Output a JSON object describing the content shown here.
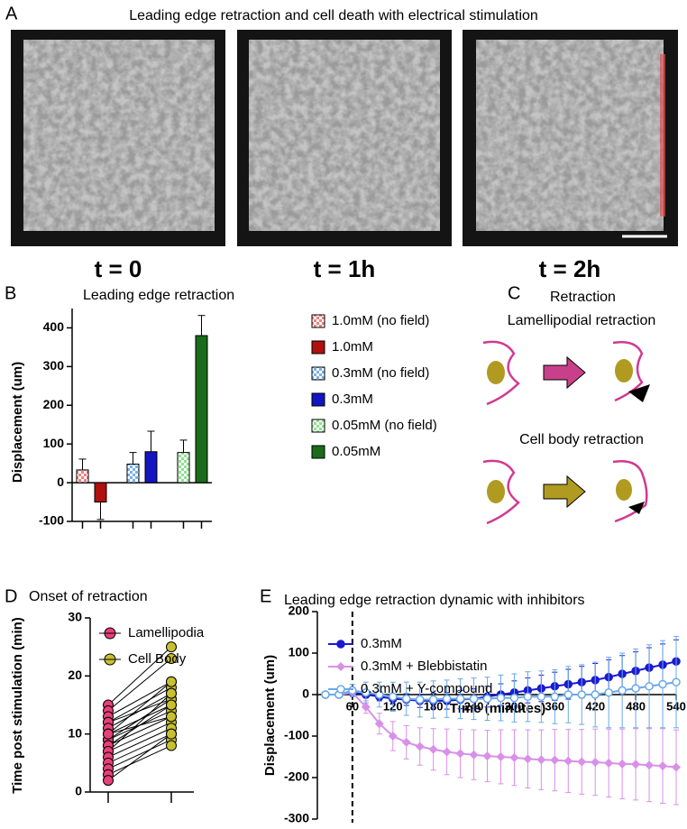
{
  "panel_a": {
    "letter": "A",
    "title": "Leading edge retraction and cell death with electrical stimulation",
    "labels": [
      "t = 0",
      "t = 1h",
      "t = 2h"
    ]
  },
  "panel_c": {
    "letter": "C",
    "title": "Retraction",
    "items": [
      {
        "label": "Lamellipodial retraction",
        "color": "#c8408a"
      },
      {
        "label": "Cell body retraction",
        "color": "#b09a20"
      }
    ]
  },
  "chart_data": [
    {
      "type": "bar",
      "letter": "B",
      "title": "Leading edge retraction",
      "ylabel": "Displacement (um)",
      "ylim": [
        -100,
        450
      ],
      "yticks": [
        -100,
        0,
        100,
        200,
        300,
        400
      ],
      "series": [
        {
          "name": "1.0mM (no field)",
          "color": "#f08080",
          "pattern": "checker",
          "values": [
            33
          ],
          "errors": [
            28
          ]
        },
        {
          "name": "1.0mM",
          "color": "#b01010",
          "values": [
            -50
          ],
          "errors": [
            45
          ]
        },
        {
          "name": "0.3mM (no field)",
          "color": "#7ab0e8",
          "pattern": "checker",
          "values": [
            48
          ],
          "errors": [
            30
          ]
        },
        {
          "name": "0.3mM",
          "color": "#1414c0",
          "values": [
            80
          ],
          "errors": [
            53
          ]
        },
        {
          "name": "0.05mM (no field)",
          "color": "#90e090",
          "pattern": "checker",
          "values": [
            78
          ],
          "errors": [
            32
          ]
        },
        {
          "name": "0.05mM",
          "color": "#1a6b1a",
          "values": [
            380
          ],
          "errors": [
            52
          ]
        }
      ]
    },
    {
      "type": "paired",
      "letter": "D",
      "title": "Onset of retraction",
      "ylabel": "Time post stimulation (min)",
      "ylim": [
        0,
        30
      ],
      "yticks": [
        0,
        10,
        20,
        30
      ],
      "series": [
        {
          "name": "Lamellipodia",
          "color": "#e8407a",
          "values": [
            15,
            14,
            13,
            12,
            12,
            11,
            10,
            10,
            9,
            9,
            8,
            8,
            7,
            7,
            6,
            5,
            4,
            3,
            2,
            10
          ]
        },
        {
          "name": "Cell Body",
          "color": "#c8c030",
          "values": [
            25,
            23,
            19,
            18,
            16,
            17,
            15,
            19,
            14,
            16,
            13,
            15,
            12,
            17,
            11,
            10,
            9,
            8,
            10,
            13
          ]
        }
      ]
    },
    {
      "type": "line",
      "letter": "E",
      "title": "Leading edge retraction dynamic with inhibitors",
      "ylabel": "Displacement (um)",
      "xlabel": "Time (minutes)",
      "xlim": [
        0,
        540
      ],
      "xticks": [
        60,
        120,
        180,
        240,
        300,
        360,
        420,
        480,
        540
      ],
      "ylim": [
        -300,
        200
      ],
      "yticks": [
        -300,
        -200,
        -100,
        0,
        100,
        200
      ],
      "vline_x": 60,
      "x": [
        20,
        40,
        60,
        80,
        100,
        120,
        140,
        160,
        180,
        200,
        220,
        240,
        260,
        280,
        300,
        320,
        340,
        360,
        380,
        400,
        420,
        440,
        460,
        480,
        500,
        520,
        540
      ],
      "series": [
        {
          "name": "0.3mM",
          "color": "#1a1ad0",
          "marker": "circle",
          "values": [
            0,
            0,
            5,
            0,
            -5,
            -10,
            -12,
            -15,
            -15,
            -15,
            -12,
            -10,
            -5,
            0,
            5,
            10,
            15,
            20,
            25,
            30,
            35,
            42,
            50,
            57,
            65,
            72,
            80
          ],
          "errors": [
            2,
            2,
            5,
            8,
            10,
            12,
            14,
            16,
            18,
            20,
            22,
            24,
            25,
            26,
            28,
            30,
            32,
            34,
            36,
            38,
            40,
            42,
            44,
            46,
            48,
            50,
            52
          ]
        },
        {
          "name": "0.3mM + Blebbistatin",
          "color": "#d890e8",
          "marker": "diamond",
          "values": [
            0,
            0,
            5,
            -30,
            -70,
            -100,
            -115,
            -125,
            -132,
            -138,
            -142,
            -145,
            -148,
            -150,
            -152,
            -155,
            -157,
            -158,
            -160,
            -162,
            -163,
            -165,
            -167,
            -168,
            -170,
            -172,
            -175
          ],
          "errors": [
            2,
            2,
            5,
            15,
            25,
            35,
            40,
            45,
            50,
            55,
            58,
            60,
            62,
            65,
            67,
            70,
            72,
            74,
            76,
            78,
            80,
            82,
            84,
            86,
            88,
            90,
            90
          ]
        },
        {
          "name": "0.3mM + Y-compound",
          "color": "#6aa8e8",
          "marker": "open-circle",
          "values": [
            0,
            0,
            10,
            5,
            0,
            -5,
            -10,
            -12,
            -12,
            -10,
            -10,
            -10,
            -10,
            -8,
            -8,
            -5,
            -5,
            -5,
            0,
            0,
            0,
            5,
            10,
            15,
            20,
            25,
            30
          ],
          "errors": [
            5,
            5,
            15,
            25,
            30,
            35,
            40,
            42,
            45,
            45,
            48,
            50,
            52,
            55,
            58,
            60,
            62,
            65,
            68,
            72,
            78,
            85,
            90,
            95,
            100,
            105,
            110
          ]
        }
      ]
    }
  ]
}
